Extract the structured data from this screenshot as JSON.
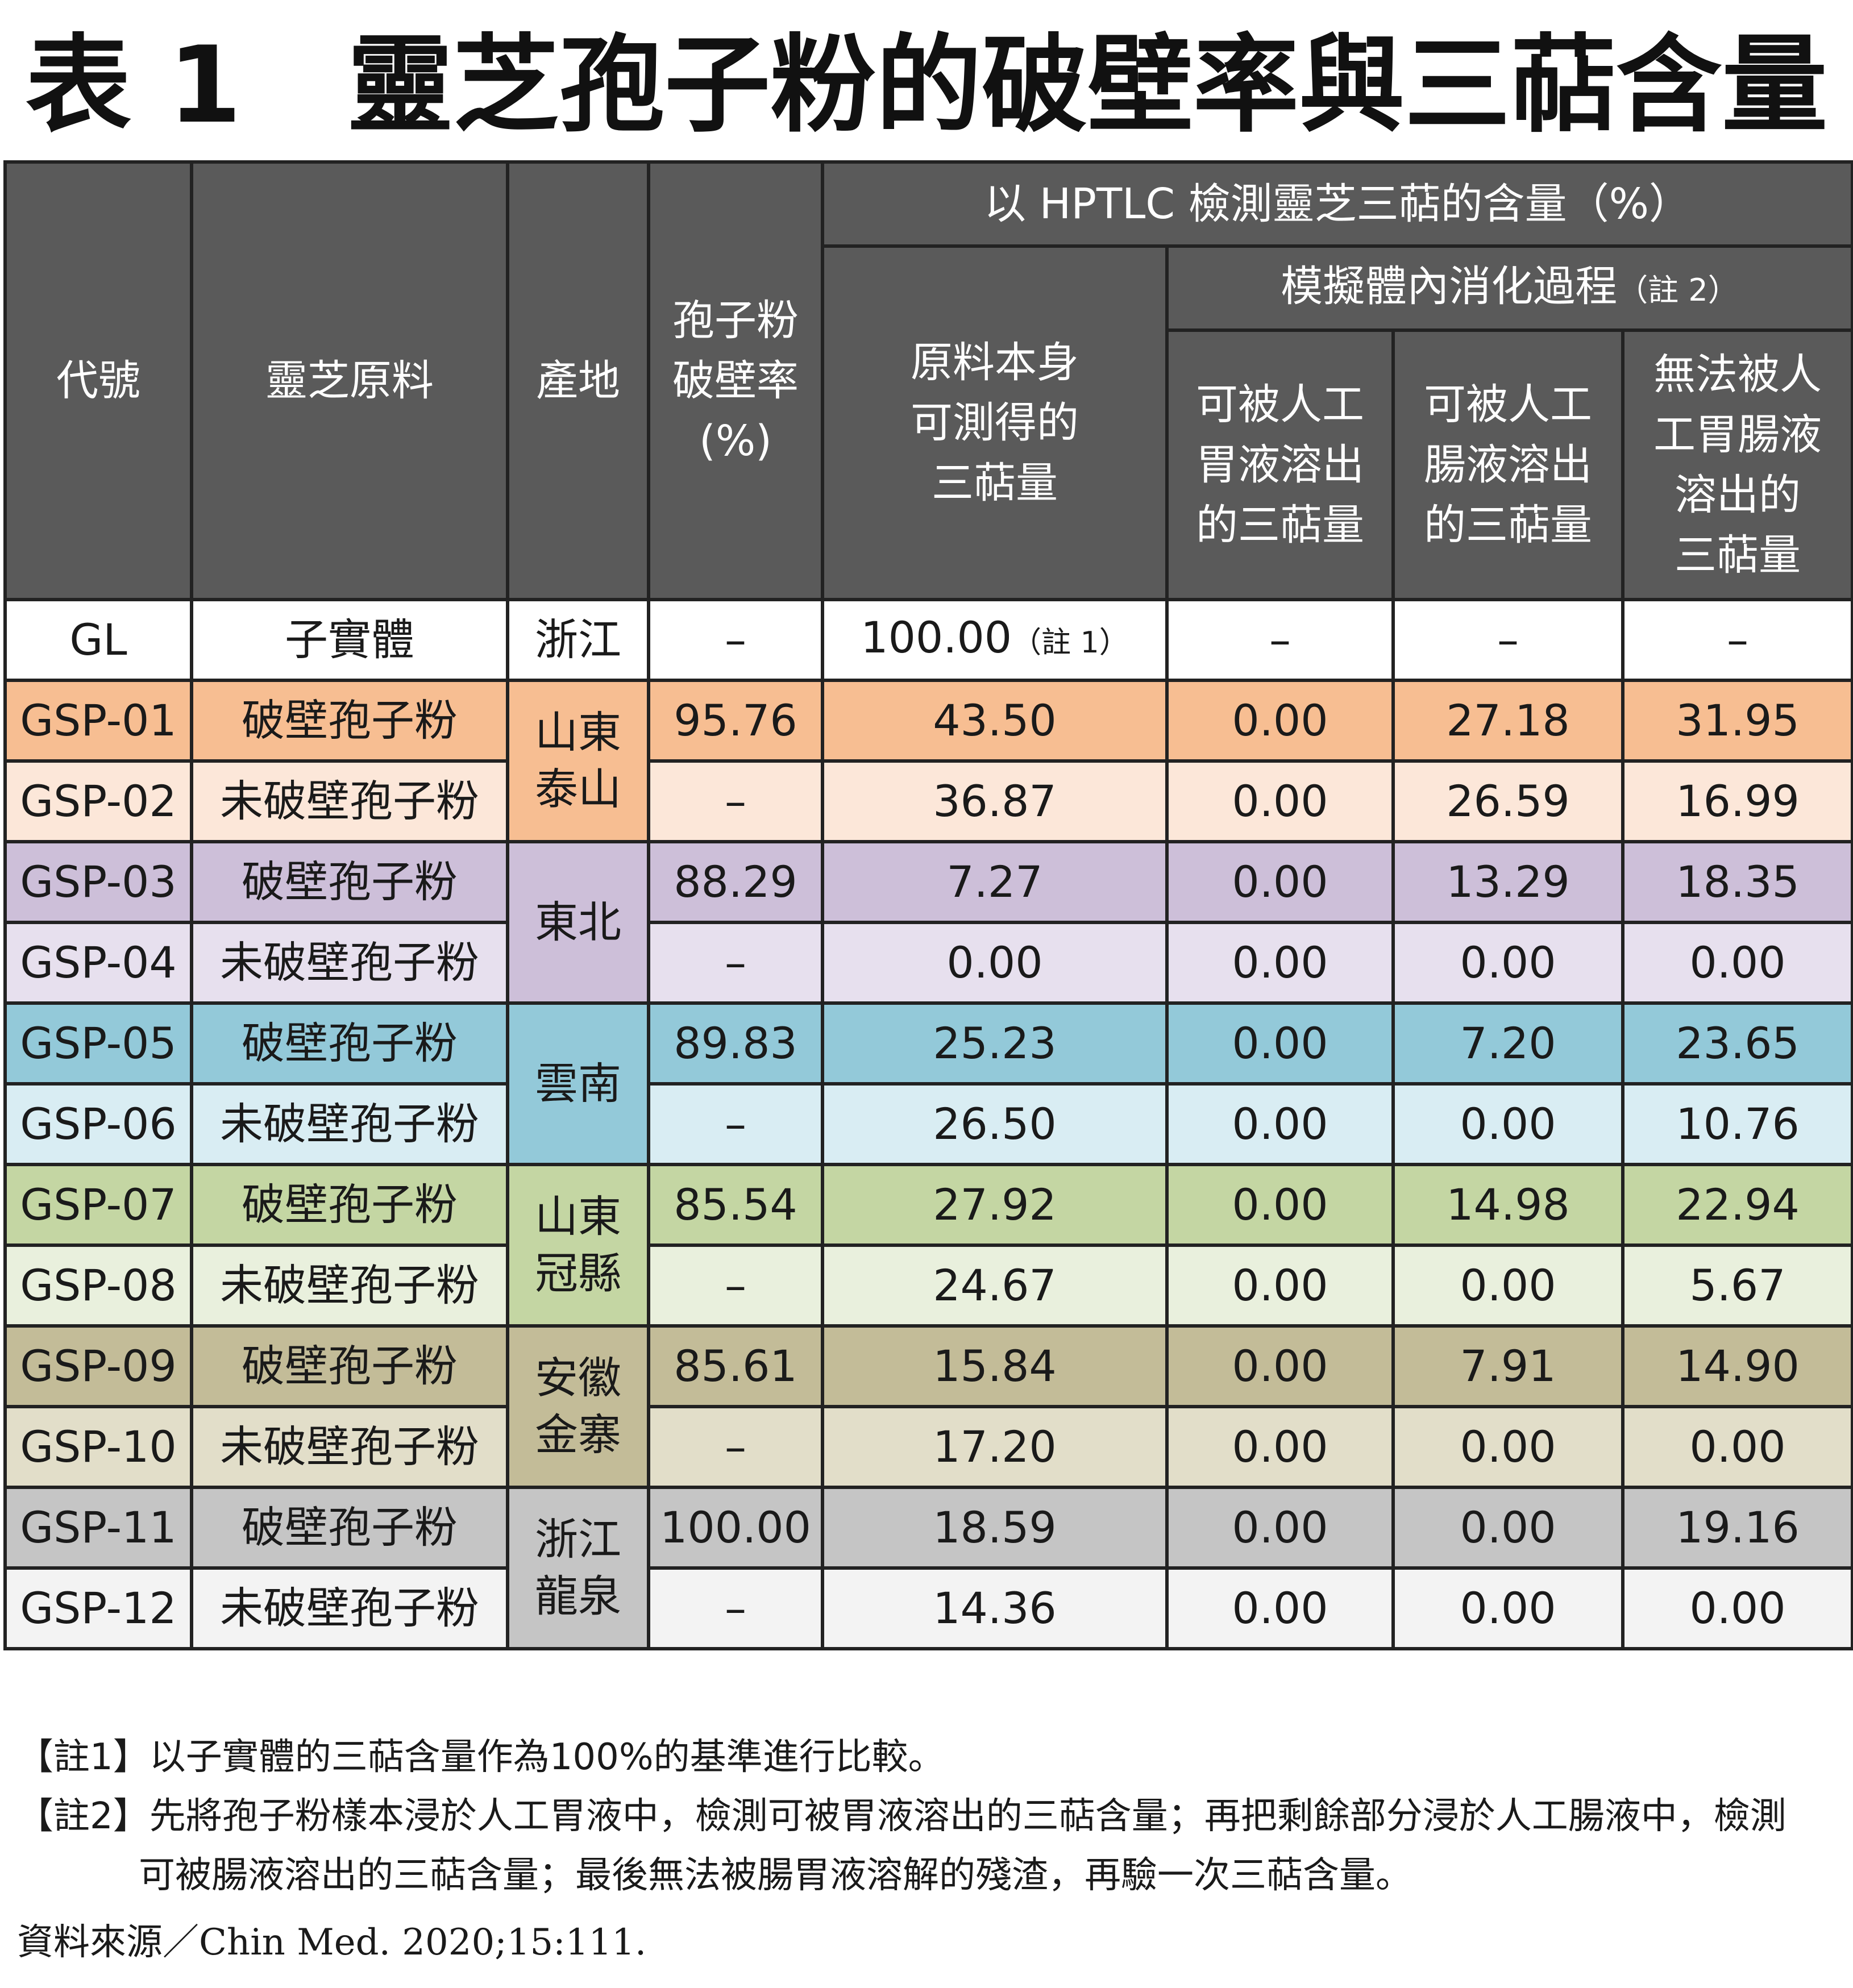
{
  "title": "表 1　靈芝孢子粉的破壁率與三萜含量",
  "header": {
    "code": "代號",
    "material": "靈芝原料",
    "origin": "產地",
    "rate_l1": "孢子粉",
    "rate_l2": "破壁率",
    "rate_l3": "(%)",
    "hptlc": "以 HPTLC 檢測靈芝三萜的含量（%）",
    "raw_l1": "原料本身",
    "raw_l2": "可測得的",
    "raw_l3": "三萜量",
    "sim": "模擬體內消化過程",
    "sim_note": "（註 2）",
    "gastric_l1": "可被人工",
    "gastric_l2": "胃液溶出",
    "gastric_l3": "的三萜量",
    "intestinal_l1": "可被人工",
    "intestinal_l2": "腸液溶出",
    "intestinal_l3": "的三萜量",
    "residue_l1": "無法被人",
    "residue_l2": "工胃腸液",
    "residue_l3": "溶出的",
    "residue_l4": "三萜量"
  },
  "rows": [
    {
      "code": "GL",
      "material": "子實體",
      "origin": "浙江",
      "rate": "–",
      "raw": "100.00",
      "raw_note": "（註 1）",
      "gastric": "–",
      "intestinal": "–",
      "residue": "–"
    },
    {
      "code": "GSP-01",
      "material": "破壁孢子粉",
      "rate": "95.76",
      "raw": "43.50",
      "gastric": "0.00",
      "intestinal": "27.18",
      "residue": "31.95"
    },
    {
      "code": "GSP-02",
      "material": "未破壁孢子粉",
      "rate": "–",
      "raw": "36.87",
      "gastric": "0.00",
      "intestinal": "26.59",
      "residue": "16.99"
    },
    {
      "code": "GSP-03",
      "material": "破壁孢子粉",
      "rate": "88.29",
      "raw": "7.27",
      "gastric": "0.00",
      "intestinal": "13.29",
      "residue": "18.35"
    },
    {
      "code": "GSP-04",
      "material": "未破壁孢子粉",
      "rate": "–",
      "raw": "0.00",
      "gastric": "0.00",
      "intestinal": "0.00",
      "residue": "0.00"
    },
    {
      "code": "GSP-05",
      "material": "破壁孢子粉",
      "rate": "89.83",
      "raw": "25.23",
      "gastric": "0.00",
      "intestinal": "7.20",
      "residue": "23.65"
    },
    {
      "code": "GSP-06",
      "material": "未破壁孢子粉",
      "rate": "–",
      "raw": "26.50",
      "gastric": "0.00",
      "intestinal": "0.00",
      "residue": "10.76"
    },
    {
      "code": "GSP-07",
      "material": "破壁孢子粉",
      "rate": "85.54",
      "raw": "27.92",
      "gastric": "0.00",
      "intestinal": "14.98",
      "residue": "22.94"
    },
    {
      "code": "GSP-08",
      "material": "未破壁孢子粉",
      "rate": "–",
      "raw": "24.67",
      "gastric": "0.00",
      "intestinal": "0.00",
      "residue": "5.67"
    },
    {
      "code": "GSP-09",
      "material": "破壁孢子粉",
      "rate": "85.61",
      "raw": "15.84",
      "gastric": "0.00",
      "intestinal": "7.91",
      "residue": "14.90"
    },
    {
      "code": "GSP-10",
      "material": "未破壁孢子粉",
      "rate": "–",
      "raw": "17.20",
      "gastric": "0.00",
      "intestinal": "0.00",
      "residue": "0.00"
    },
    {
      "code": "GSP-11",
      "material": "破壁孢子粉",
      "rate": "100.00",
      "raw": "18.59",
      "gastric": "0.00",
      "intestinal": "0.00",
      "residue": "19.16"
    },
    {
      "code": "GSP-12",
      "material": "未破壁孢子粉",
      "rate": "–",
      "raw": "14.36",
      "gastric": "0.00",
      "intestinal": "0.00",
      "residue": "0.00"
    }
  ],
  "regions": [
    {
      "l1": "山東",
      "l2": "泰山"
    },
    {
      "l1": "東北",
      "l2": ""
    },
    {
      "l1": "雲南",
      "l2": ""
    },
    {
      "l1": "山東",
      "l2": "冠縣"
    },
    {
      "l1": "安徽",
      "l2": "金寨"
    },
    {
      "l1": "浙江",
      "l2": "龍泉"
    }
  ],
  "notes": {
    "note1": "【註1】以子實體的三萜含量作為100%的基準進行比較。",
    "note2_a": "【註2】先將孢子粉樣本浸於人工胃液中，檢測可被胃液溶出的三萜含量；再把剩餘部分浸於人工腸液中，檢測",
    "note2_b": "可被腸液溶出的三萜含量；最後無法被腸胃液溶解的殘渣，再驗一次三萜含量。"
  },
  "source": {
    "label": "資料來源／",
    "citation": "Chin Med. 2020;15:111."
  }
}
